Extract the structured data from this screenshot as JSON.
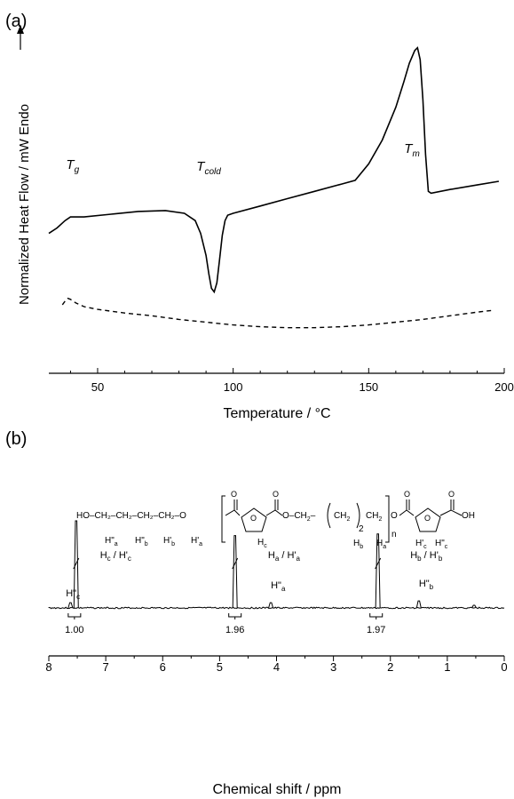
{
  "chart_data": [
    {
      "type": "line",
      "panel_label": "(a)",
      "xlabel": "Temperature / °C",
      "ylabel": "Normalized Heat Flow / mW  Endo",
      "xlim": [
        32,
        200
      ],
      "xticks": [
        "50",
        "100",
        "150",
        "200"
      ],
      "grid": false,
      "annotations": [
        {
          "text": "T",
          "sub": "g",
          "x": 40
        },
        {
          "text": "T",
          "sub": "cold",
          "x": 93
        },
        {
          "text": "T",
          "sub": "m",
          "x": 168
        }
      ],
      "series": [
        {
          "style": "solid",
          "x": [
            32,
            35,
            38,
            40,
            45,
            55,
            65,
            75,
            82,
            86,
            88,
            90,
            91,
            92,
            93,
            94,
            95,
            96,
            97,
            98,
            100,
            110,
            120,
            130,
            140,
            145,
            150,
            155,
            160,
            163,
            165,
            167,
            168,
            169,
            170,
            171,
            172,
            173,
            180,
            190,
            198
          ],
          "y": [
            0.57,
            0.6,
            0.64,
            0.66,
            0.66,
            0.675,
            0.69,
            0.695,
            0.68,
            0.64,
            0.57,
            0.45,
            0.35,
            0.27,
            0.25,
            0.3,
            0.43,
            0.56,
            0.64,
            0.67,
            0.68,
            0.72,
            0.76,
            0.8,
            0.84,
            0.86,
            0.95,
            1.08,
            1.26,
            1.4,
            1.5,
            1.57,
            1.585,
            1.52,
            1.3,
            1.0,
            0.8,
            0.79,
            0.81,
            0.835,
            0.855
          ]
        },
        {
          "style": "dashed",
          "x": [
            37,
            38,
            39,
            40,
            42,
            45,
            50,
            60,
            70,
            80,
            90,
            100,
            110,
            120,
            130,
            140,
            150,
            160,
            170,
            180,
            190,
            196
          ],
          "y": [
            0.18,
            0.2,
            0.215,
            0.21,
            0.19,
            0.17,
            0.155,
            0.135,
            0.12,
            0.1,
            0.085,
            0.07,
            0.06,
            0.055,
            0.055,
            0.06,
            0.07,
            0.085,
            0.1,
            0.12,
            0.14,
            0.15
          ]
        }
      ]
    },
    {
      "type": "line",
      "panel_label": "(b)",
      "xlabel": "Chemical shift / ppm",
      "xlim": [
        8,
        0
      ],
      "x_reversed": true,
      "xticks": [
        "8",
        "7",
        "6",
        "5",
        "4",
        "3",
        "2",
        "1",
        "0"
      ],
      "grid": false,
      "peaks": [
        {
          "ppm": 7.62,
          "height": 0.06
        },
        {
          "ppm": 7.52,
          "height": 1.0
        },
        {
          "ppm": 4.73,
          "height": 0.83
        },
        {
          "ppm": 4.1,
          "height": 0.06
        },
        {
          "ppm": 2.22,
          "height": 0.85
        },
        {
          "ppm": 1.5,
          "height": 0.08
        },
        {
          "ppm": 0.53,
          "height": 0.03
        }
      ],
      "integrals": [
        {
          "ppm": 7.55,
          "value": "1.00"
        },
        {
          "ppm": 4.73,
          "value": "1.96"
        },
        {
          "ppm": 2.25,
          "value": "1.97"
        }
      ],
      "peak_labels": [
        {
          "ppm": 7.7,
          "text": "H\"",
          "sub": "c"
        },
        {
          "ppm": 7.1,
          "text": "H",
          "sub": "c",
          "text2": " / H'",
          "sub2": "c"
        },
        {
          "ppm": 4.15,
          "text": "H",
          "sub": "a",
          "text2": " / H'",
          "sub2": "a"
        },
        {
          "ppm": 4.1,
          "text": "H\"",
          "sub": "a"
        },
        {
          "ppm": 1.65,
          "text": "H",
          "sub": "b",
          "text2": " / H'",
          "sub2": "b"
        },
        {
          "ppm": 1.5,
          "text": "H\"",
          "sub": "b"
        }
      ],
      "structure": {
        "end_group": "HO–CH₂–CH₂–CH₂–CH₂–O",
        "labels_under_chain": [
          "H\"a",
          "H\"b",
          "H'b",
          "H'a"
        ],
        "repeat_labels": [
          "Hc",
          "Hb",
          "Ha"
        ],
        "end_labels": [
          "H'c",
          "H\"c"
        ],
        "subscript_n": "n",
        "subscript_2": "2",
        "acid": "OH",
        "ring_o": "O",
        "carbonyl_o": "O"
      }
    }
  ]
}
